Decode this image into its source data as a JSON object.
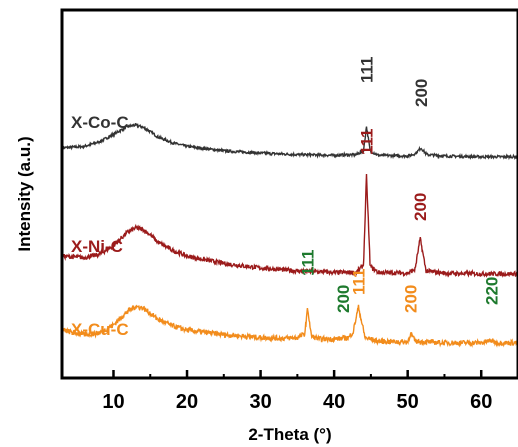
{
  "chart_data": {
    "type": "line",
    "xlabel": "2-Theta (°)",
    "ylabel": "Intensity (a.u.)",
    "xlim": [
      3,
      65
    ],
    "xticks": [
      10,
      20,
      30,
      40,
      50,
      60
    ],
    "tick_labels": [
      "10",
      "20",
      "30",
      "40",
      "50",
      "60"
    ],
    "grid": false,
    "series": [
      {
        "name": "X-Co-C",
        "color": "#333333",
        "x": [
          3,
          6,
          8,
          10,
          11,
          12,
          13,
          14,
          15,
          16,
          18,
          20,
          25,
          30,
          35,
          40,
          43,
          44,
          44.4,
          44.9,
          46,
          50,
          51,
          51.8,
          52.6,
          55,
          60,
          65
        ],
        "y": [
          92,
          94,
          100,
          110,
          116,
          121,
          123,
          120,
          114,
          107,
          99,
          94,
          88,
          85,
          83,
          82,
          83,
          88,
          121,
          88,
          82,
          81,
          84,
          92,
          83,
          81,
          80,
          80
        ]
      },
      {
        "name": "X-Ni-C",
        "color": "#9b1b1b",
        "x": [
          3,
          6,
          8,
          10,
          11,
          12,
          13,
          14,
          15,
          16,
          18,
          20,
          25,
          30,
          35,
          40,
          43,
          44,
          44.4,
          44.9,
          46,
          50,
          51,
          51.7,
          52.5,
          55,
          60,
          65
        ],
        "y": [
          62,
          60,
          64,
          76,
          86,
          95,
          100,
          98,
          91,
          81,
          70,
          62,
          52,
          46,
          42,
          40,
          40,
          50,
          170,
          48,
          40,
          39,
          44,
          86,
          42,
          39,
          38,
          38
        ]
      },
      {
        "name": "X-Cu-C",
        "color": "#f28c1c",
        "x": [
          3,
          6,
          8,
          10,
          11,
          12,
          13,
          14,
          15,
          16,
          18,
          20,
          25,
          30,
          33,
          35,
          36,
          36.4,
          36.9,
          38,
          40,
          42,
          42.6,
          43.3,
          44.2,
          46,
          50,
          50.4,
          51,
          55,
          60,
          61.4,
          62,
          65
        ],
        "y": [
          20,
          14,
          16,
          27,
          37,
          46,
          52,
          50,
          43,
          35,
          26,
          20,
          14,
          10,
          9,
          10,
          15,
          50,
          12,
          8,
          8,
          10,
          18,
          52,
          10,
          5,
          4,
          16,
          5,
          3,
          3,
          6,
          3,
          3
        ]
      }
    ],
    "peak_labels": [
      {
        "text": "111",
        "x": 44.4,
        "series": "X-Co-C",
        "color": "#333333"
      },
      {
        "text": "200",
        "x": 51.8,
        "series": "X-Co-C",
        "color": "#333333"
      },
      {
        "text": "111",
        "x": 44.4,
        "series": "X-Ni-C",
        "color": "#9b1b1b"
      },
      {
        "text": "200",
        "x": 51.7,
        "series": "X-Ni-C",
        "color": "#9b1b1b"
      },
      {
        "text": "111",
        "x": 36.4,
        "series": "X-Cu-C",
        "color": "#1e7a2e"
      },
      {
        "text": "200",
        "x": 41.2,
        "series": "X-Cu-C",
        "color": "#1e7a2e"
      },
      {
        "text": "111",
        "x": 43.3,
        "series": "X-Cu-C",
        "color": "#f28c1c"
      },
      {
        "text": "200",
        "x": 50.4,
        "series": "X-Cu-C",
        "color": "#f28c1c"
      },
      {
        "text": "220",
        "x": 61.4,
        "series": "X-Cu-C",
        "color": "#1e7a2e"
      }
    ]
  }
}
